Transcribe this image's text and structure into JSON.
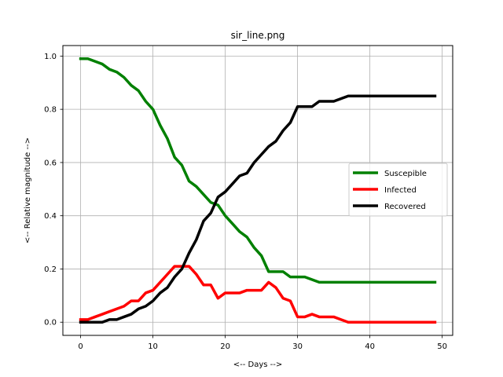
{
  "chart_data": {
    "type": "line",
    "title": "sir_line.png",
    "xlabel": "<-- Days -->",
    "ylabel": "<-- Relative magnitude -->",
    "xlim": [
      -2.45,
      51.45
    ],
    "ylim": [
      -0.0495,
      1.0395
    ],
    "xticks": [
      0,
      10,
      20,
      30,
      40,
      50
    ],
    "yticks": [
      0.0,
      0.2,
      0.4,
      0.6,
      0.8,
      1.0
    ],
    "xtick_labels": [
      "0",
      "10",
      "20",
      "30",
      "40",
      "50"
    ],
    "ytick_labels": [
      "0.0",
      "0.2",
      "0.4",
      "0.6",
      "0.8",
      "1.0"
    ],
    "grid": true,
    "legend_position": "center-right",
    "x": [
      0,
      1,
      2,
      3,
      4,
      5,
      6,
      7,
      8,
      9,
      10,
      11,
      12,
      13,
      14,
      15,
      16,
      17,
      18,
      19,
      20,
      21,
      22,
      23,
      24,
      25,
      26,
      27,
      28,
      29,
      30,
      31,
      32,
      33,
      34,
      35,
      36,
      37,
      38,
      39,
      40,
      41,
      42,
      43,
      44,
      45,
      46,
      47,
      48,
      49
    ],
    "series": [
      {
        "name": "Suscepible",
        "color": "#008000",
        "values": [
          0.99,
          0.99,
          0.98,
          0.97,
          0.95,
          0.94,
          0.92,
          0.89,
          0.87,
          0.83,
          0.8,
          0.74,
          0.69,
          0.62,
          0.59,
          0.53,
          0.51,
          0.48,
          0.45,
          0.44,
          0.4,
          0.37,
          0.34,
          0.32,
          0.28,
          0.25,
          0.19,
          0.19,
          0.19,
          0.17,
          0.17,
          0.17,
          0.16,
          0.15,
          0.15,
          0.15,
          0.15,
          0.15,
          0.15,
          0.15,
          0.15,
          0.15,
          0.15,
          0.15,
          0.15,
          0.15,
          0.15,
          0.15,
          0.15,
          0.15
        ]
      },
      {
        "name": "Infected",
        "color": "#ff0000",
        "values": [
          0.01,
          0.01,
          0.02,
          0.03,
          0.04,
          0.05,
          0.06,
          0.08,
          0.08,
          0.11,
          0.12,
          0.15,
          0.18,
          0.21,
          0.21,
          0.21,
          0.18,
          0.14,
          0.14,
          0.09,
          0.11,
          0.11,
          0.11,
          0.12,
          0.12,
          0.12,
          0.15,
          0.13,
          0.09,
          0.08,
          0.02,
          0.02,
          0.03,
          0.02,
          0.02,
          0.02,
          0.01,
          0.0,
          0.0,
          0.0,
          0.0,
          0.0,
          0.0,
          0.0,
          0.0,
          0.0,
          0.0,
          0.0,
          0.0,
          0.0
        ]
      },
      {
        "name": "Recovered",
        "color": "#000000",
        "values": [
          0.0,
          0.0,
          0.0,
          0.0,
          0.01,
          0.01,
          0.02,
          0.03,
          0.05,
          0.06,
          0.08,
          0.11,
          0.13,
          0.17,
          0.2,
          0.26,
          0.31,
          0.38,
          0.41,
          0.47,
          0.49,
          0.52,
          0.55,
          0.56,
          0.6,
          0.63,
          0.66,
          0.68,
          0.72,
          0.75,
          0.81,
          0.81,
          0.81,
          0.83,
          0.83,
          0.83,
          0.84,
          0.85,
          0.85,
          0.85,
          0.85,
          0.85,
          0.85,
          0.85,
          0.85,
          0.85,
          0.85,
          0.85,
          0.85,
          0.85
        ]
      }
    ]
  }
}
